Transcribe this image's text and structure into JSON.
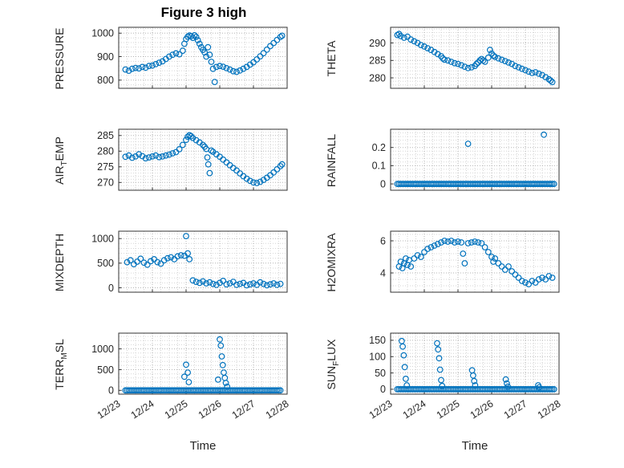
{
  "figure": {
    "title": "Figure 3 high",
    "xlabel": "Time",
    "marker_color": "#0072BD",
    "xlim": [
      0,
      5
    ],
    "xticks": [
      0,
      1,
      2,
      3,
      4,
      5
    ],
    "xtick_labels": [
      "12/23",
      "12/24",
      "12/25",
      "12/26",
      "12/27",
      "12/28"
    ],
    "xminor": 0.25
  },
  "chart_data": [
    {
      "type": "scatter",
      "ylabel": {
        "pre": "PRESSURE",
        "sub": "",
        "post": ""
      },
      "ylim": [
        765,
        1025
      ],
      "yticks": [
        800,
        900,
        1000
      ],
      "x": [
        0.2,
        0.3,
        0.4,
        0.5,
        0.6,
        0.7,
        0.8,
        0.9,
        1.0,
        1.1,
        1.2,
        1.3,
        1.4,
        1.5,
        1.6,
        1.7,
        1.8,
        1.9,
        1.95,
        2.0,
        2.05,
        2.1,
        2.15,
        2.2,
        2.25,
        2.3,
        2.35,
        2.4,
        2.45,
        2.5,
        2.55,
        2.6,
        2.65,
        2.7,
        2.75,
        2.8,
        2.85,
        2.9,
        3.0,
        3.1,
        3.2,
        3.3,
        3.4,
        3.5,
        3.6,
        3.7,
        3.8,
        3.9,
        4.0,
        4.1,
        4.2,
        4.3,
        4.4,
        4.5,
        4.6,
        4.7,
        4.8,
        4.85
      ],
      "y": [
        845,
        840,
        848,
        852,
        850,
        856,
        853,
        860,
        862,
        868,
        874,
        880,
        890,
        900,
        908,
        914,
        910,
        925,
        955,
        975,
        985,
        990,
        987,
        980,
        991,
        984,
        970,
        955,
        940,
        929,
        918,
        900,
        940,
        908,
        878,
        848,
        792,
        856,
        860,
        857,
        851,
        845,
        838,
        835,
        841,
        848,
        856,
        866,
        876,
        888,
        901,
        915,
        930,
        945,
        958,
        971,
        984,
        989
      ]
    },
    {
      "type": "scatter",
      "ylabel": {
        "pre": "AIR",
        "sub": "T",
        "post": "EMP"
      },
      "ylim": [
        267.5,
        287
      ],
      "yticks": [
        270,
        275,
        280,
        285
      ],
      "x": [
        0.2,
        0.3,
        0.4,
        0.5,
        0.6,
        0.7,
        0.8,
        0.9,
        1.0,
        1.1,
        1.2,
        1.3,
        1.4,
        1.5,
        1.6,
        1.7,
        1.8,
        1.9,
        2.0,
        2.05,
        2.1,
        2.15,
        2.2,
        2.3,
        2.4,
        2.5,
        2.55,
        2.6,
        2.63,
        2.66,
        2.7,
        2.75,
        2.8,
        2.9,
        3.0,
        3.1,
        3.2,
        3.3,
        3.4,
        3.5,
        3.6,
        3.7,
        3.8,
        3.9,
        4.0,
        4.1,
        4.2,
        4.3,
        4.4,
        4.5,
        4.6,
        4.7,
        4.8,
        4.85
      ],
      "y": [
        278.2,
        278.6,
        277.9,
        278.3,
        279.0,
        278.4,
        277.7,
        278.0,
        278.3,
        278.6,
        278.1,
        278.3,
        278.6,
        278.9,
        279.3,
        279.7,
        280.6,
        282.0,
        283.6,
        284.6,
        285.1,
        284.8,
        284.2,
        283.5,
        282.8,
        282.0,
        281.4,
        280.7,
        278.0,
        275.8,
        273.0,
        280.2,
        279.8,
        279.0,
        278.2,
        277.3,
        276.4,
        275.5,
        274.6,
        273.8,
        272.9,
        272.0,
        271.2,
        270.5,
        270.0,
        269.8,
        270.2,
        270.8,
        271.5,
        272.3,
        273.2,
        274.2,
        275.2,
        275.8
      ]
    },
    {
      "type": "scatter",
      "ylabel": {
        "pre": "MIXDEPTH",
        "sub": "",
        "post": ""
      },
      "ylim": [
        -90,
        1150
      ],
      "yticks": [
        0,
        500,
        1000
      ],
      "x": [
        0.25,
        0.35,
        0.45,
        0.55,
        0.65,
        0.75,
        0.85,
        0.95,
        1.05,
        1.15,
        1.25,
        1.35,
        1.45,
        1.55,
        1.65,
        1.75,
        1.85,
        1.95,
        2.0,
        2.05,
        2.1,
        2.2,
        2.3,
        2.4,
        2.5,
        2.6,
        2.7,
        2.8,
        2.9,
        3.0,
        3.1,
        3.2,
        3.3,
        3.4,
        3.5,
        3.6,
        3.7,
        3.8,
        3.9,
        4.0,
        4.1,
        4.2,
        4.3,
        4.4,
        4.5,
        4.6,
        4.7,
        4.8
      ],
      "y": [
        520,
        560,
        480,
        530,
        590,
        510,
        470,
        540,
        580,
        520,
        490,
        560,
        600,
        620,
        580,
        640,
        660,
        650,
        1050,
        700,
        580,
        150,
        120,
        100,
        130,
        90,
        110,
        80,
        60,
        100,
        140,
        70,
        90,
        120,
        60,
        80,
        100,
        50,
        70,
        90,
        60,
        110,
        80,
        50,
        70,
        90,
        60,
        80
      ]
    },
    {
      "type": "scatter",
      "ylabel": {
        "pre": "TERR",
        "sub": "M",
        "post": "SL"
      },
      "ylim": [
        -90,
        1380
      ],
      "yticks": [
        0,
        500,
        1000
      ],
      "baseline": {
        "from": 0.2,
        "to": 4.8,
        "step": 0.05,
        "y": 0
      },
      "x": [
        1.95,
        2.0,
        2.05,
        2.08,
        2.95,
        3.0,
        3.03,
        3.06,
        3.09,
        3.12,
        3.15,
        3.18,
        3.22
      ],
      "y": [
        330,
        620,
        430,
        200,
        260,
        1230,
        1080,
        820,
        610,
        430,
        300,
        180,
        90
      ]
    },
    {
      "type": "scatter",
      "ylabel": {
        "pre": "THETA",
        "sub": "",
        "post": ""
      },
      "ylim": [
        277,
        294.5
      ],
      "yticks": [
        280,
        285,
        290
      ],
      "x": [
        0.2,
        0.25,
        0.3,
        0.4,
        0.5,
        0.6,
        0.7,
        0.8,
        0.9,
        1.0,
        1.1,
        1.2,
        1.3,
        1.4,
        1.5,
        1.55,
        1.6,
        1.7,
        1.8,
        1.9,
        2.0,
        2.1,
        2.2,
        2.3,
        2.4,
        2.5,
        2.55,
        2.6,
        2.65,
        2.7,
        2.75,
        2.8,
        2.9,
        2.95,
        3.0,
        3.05,
        3.1,
        3.2,
        3.3,
        3.4,
        3.5,
        3.6,
        3.7,
        3.8,
        3.9,
        4.0,
        4.1,
        4.2,
        4.3,
        4.4,
        4.5,
        4.6,
        4.7,
        4.75,
        4.8
      ],
      "y": [
        292.3,
        292.6,
        292.0,
        291.5,
        291.8,
        291.0,
        290.5,
        290.0,
        289.4,
        289.0,
        288.5,
        288.0,
        287.4,
        286.8,
        286.2,
        285.6,
        285.2,
        285.0,
        284.6,
        284.2,
        284.0,
        283.6,
        283.2,
        282.8,
        283.0,
        283.4,
        284.0,
        284.4,
        285.0,
        285.4,
        285.0,
        284.6,
        285.8,
        288.0,
        287.0,
        286.4,
        286.0,
        285.6,
        285.2,
        284.8,
        284.4,
        284.0,
        283.4,
        283.0,
        282.6,
        282.2,
        281.8,
        281.4,
        281.6,
        281.2,
        280.8,
        280.2,
        279.6,
        279.2,
        278.8
      ]
    },
    {
      "type": "scatter",
      "ylabel": {
        "pre": "RAINFALL",
        "sub": "",
        "post": ""
      },
      "ylim": [
        -0.035,
        0.3
      ],
      "yticks": [
        0,
        0.1,
        0.2
      ],
      "baseline": {
        "from": 0.2,
        "to": 4.85,
        "step": 0.05,
        "y": 0
      },
      "x": [
        2.3,
        4.55
      ],
      "y": [
        0.22,
        0.27
      ]
    },
    {
      "type": "scatter",
      "ylabel": {
        "pre": "H2OMIXRA",
        "sub": "",
        "post": ""
      },
      "ylim": [
        2.8,
        6.6
      ],
      "yticks": [
        4,
        6
      ],
      "x": [
        0.25,
        0.3,
        0.35,
        0.4,
        0.45,
        0.5,
        0.55,
        0.6,
        0.7,
        0.8,
        0.9,
        1.0,
        1.1,
        1.2,
        1.3,
        1.4,
        1.5,
        1.6,
        1.7,
        1.8,
        1.9,
        2.0,
        2.1,
        2.15,
        2.2,
        2.3,
        2.4,
        2.5,
        2.6,
        2.7,
        2.8,
        2.9,
        3.0,
        3.05,
        3.1,
        3.2,
        3.3,
        3.4,
        3.5,
        3.6,
        3.7,
        3.8,
        3.9,
        4.0,
        4.1,
        4.2,
        4.3,
        4.4,
        4.5,
        4.6,
        4.7,
        4.8
      ],
      "y": [
        4.4,
        4.7,
        4.3,
        4.6,
        4.9,
        4.5,
        4.8,
        4.4,
        4.9,
        5.1,
        5.0,
        5.3,
        5.5,
        5.6,
        5.7,
        5.8,
        5.9,
        6.0,
        5.95,
        6.0,
        5.9,
        5.95,
        5.9,
        5.2,
        4.6,
        5.85,
        5.9,
        5.95,
        5.9,
        5.85,
        5.6,
        5.3,
        5.0,
        4.7,
        4.9,
        4.6,
        4.4,
        4.2,
        4.4,
        4.1,
        3.9,
        3.7,
        3.5,
        3.4,
        3.3,
        3.5,
        3.4,
        3.6,
        3.7,
        3.6,
        3.8,
        3.7
      ]
    },
    {
      "type": "scatter",
      "ylabel": {
        "pre": "SUN",
        "sub": "F",
        "post": "LUX"
      },
      "ylim": [
        -15,
        172
      ],
      "yticks": [
        0,
        50,
        100,
        150
      ],
      "baseline": {
        "from": 0.2,
        "to": 4.85,
        "step": 0.05,
        "y": 0
      },
      "x": [
        0.33,
        0.36,
        0.39,
        0.42,
        0.45,
        0.48,
        1.38,
        1.41,
        1.44,
        1.47,
        1.5,
        1.53,
        2.42,
        2.45,
        2.48,
        2.51,
        3.42,
        3.45,
        3.48,
        4.38,
        4.41
      ],
      "y": [
        148,
        131,
        104,
        68,
        32,
        12,
        141,
        122,
        95,
        60,
        28,
        10,
        58,
        42,
        25,
        12,
        30,
        18,
        8,
        12,
        6
      ]
    }
  ]
}
